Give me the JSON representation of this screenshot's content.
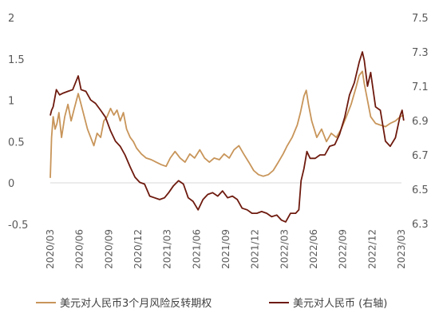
{
  "chart_data": {
    "type": "line",
    "title": "",
    "x_tick_labels": [
      "2020/03",
      "2020/06",
      "2020/09",
      "2020/12",
      "2021/03",
      "2021/06",
      "2021/09",
      "2021/12",
      "2022/03",
      "2022/06",
      "2022/09",
      "2022/12",
      "2023/03"
    ],
    "y_left": {
      "ticks": [
        "2",
        "1.5",
        "1",
        "0.5",
        "0",
        "-0.5"
      ],
      "range": [
        -0.5,
        2
      ]
    },
    "y_right": {
      "ticks": [
        "7.5",
        "7.3",
        "7.1",
        "6.9",
        "6.7",
        "6.5",
        "6.3"
      ],
      "range": [
        6.3,
        7.5
      ]
    },
    "grid": false,
    "legend_position": "bottom",
    "series": [
      {
        "name": "美元对人民币3个月风险反转期权",
        "axis": "left",
        "color": "#C8955A",
        "values": [
          [
            "2020-03-01",
            0.06
          ],
          [
            "2020-03-05",
            0.55
          ],
          [
            "2020-03-10",
            0.8
          ],
          [
            "2020-03-16",
            0.65
          ],
          [
            "2020-03-22",
            0.72
          ],
          [
            "2020-03-28",
            0.85
          ],
          [
            "2020-04-05",
            0.55
          ],
          [
            "2020-04-15",
            0.8
          ],
          [
            "2020-04-25",
            0.95
          ],
          [
            "2020-05-05",
            0.75
          ],
          [
            "2020-05-15",
            0.9
          ],
          [
            "2020-05-27",
            1.08
          ],
          [
            "2020-06-05",
            0.95
          ],
          [
            "2020-06-15",
            0.8
          ],
          [
            "2020-06-25",
            0.65
          ],
          [
            "2020-07-05",
            0.55
          ],
          [
            "2020-07-15",
            0.45
          ],
          [
            "2020-07-25",
            0.6
          ],
          [
            "2020-08-05",
            0.55
          ],
          [
            "2020-08-15",
            0.75
          ],
          [
            "2020-08-25",
            0.8
          ],
          [
            "2020-09-05",
            0.9
          ],
          [
            "2020-09-15",
            0.82
          ],
          [
            "2020-09-25",
            0.88
          ],
          [
            "2020-10-05",
            0.75
          ],
          [
            "2020-10-15",
            0.85
          ],
          [
            "2020-10-25",
            0.65
          ],
          [
            "2020-11-05",
            0.55
          ],
          [
            "2020-11-15",
            0.5
          ],
          [
            "2020-11-25",
            0.42
          ],
          [
            "2020-12-10",
            0.35
          ],
          [
            "2020-12-25",
            0.3
          ],
          [
            "2021-01-10",
            0.28
          ],
          [
            "2021-01-25",
            0.25
          ],
          [
            "2021-02-10",
            0.22
          ],
          [
            "2021-02-25",
            0.2
          ],
          [
            "2021-03-10",
            0.3
          ],
          [
            "2021-03-25",
            0.38
          ],
          [
            "2021-04-10",
            0.3
          ],
          [
            "2021-04-25",
            0.25
          ],
          [
            "2021-05-10",
            0.35
          ],
          [
            "2021-05-25",
            0.3
          ],
          [
            "2021-06-10",
            0.4
          ],
          [
            "2021-06-25",
            0.3
          ],
          [
            "2021-07-10",
            0.25
          ],
          [
            "2021-07-25",
            0.3
          ],
          [
            "2021-08-10",
            0.28
          ],
          [
            "2021-08-25",
            0.35
          ],
          [
            "2021-09-10",
            0.3
          ],
          [
            "2021-09-25",
            0.4
          ],
          [
            "2021-10-10",
            0.45
          ],
          [
            "2021-10-25",
            0.35
          ],
          [
            "2021-11-10",
            0.25
          ],
          [
            "2021-11-25",
            0.15
          ],
          [
            "2021-12-10",
            0.1
          ],
          [
            "2021-12-25",
            0.08
          ],
          [
            "2022-01-10",
            0.1
          ],
          [
            "2022-01-25",
            0.15
          ],
          [
            "2022-02-10",
            0.25
          ],
          [
            "2022-02-25",
            0.35
          ],
          [
            "2022-03-10",
            0.45
          ],
          [
            "2022-03-25",
            0.55
          ],
          [
            "2022-04-10",
            0.7
          ],
          [
            "2022-04-20",
            0.85
          ],
          [
            "2022-05-01",
            1.05
          ],
          [
            "2022-05-08",
            1.12
          ],
          [
            "2022-05-15",
            0.95
          ],
          [
            "2022-05-25",
            0.75
          ],
          [
            "2022-06-10",
            0.55
          ],
          [
            "2022-06-25",
            0.65
          ],
          [
            "2022-07-10",
            0.5
          ],
          [
            "2022-07-25",
            0.6
          ],
          [
            "2022-08-10",
            0.55
          ],
          [
            "2022-08-25",
            0.65
          ],
          [
            "2022-09-10",
            0.8
          ],
          [
            "2022-09-25",
            0.95
          ],
          [
            "2022-10-10",
            1.15
          ],
          [
            "2022-10-20",
            1.3
          ],
          [
            "2022-10-30",
            1.35
          ],
          [
            "2022-11-05",
            1.2
          ],
          [
            "2022-11-15",
            1.0
          ],
          [
            "2022-11-25",
            0.8
          ],
          [
            "2022-12-10",
            0.72
          ],
          [
            "2022-12-25",
            0.7
          ],
          [
            "2023-01-10",
            0.68
          ],
          [
            "2023-01-25",
            0.72
          ],
          [
            "2023-02-10",
            0.75
          ],
          [
            "2023-02-25",
            0.8
          ],
          [
            "2023-03-08",
            0.82
          ]
        ]
      },
      {
        "name": "美元对人民币 (右轴)",
        "axis": "right",
        "color": "#6E1A0E",
        "values": [
          [
            "2020-03-01",
            6.93
          ],
          [
            "2020-03-05",
            6.96
          ],
          [
            "2020-03-10",
            6.98
          ],
          [
            "2020-03-20",
            7.08
          ],
          [
            "2020-03-30",
            7.05
          ],
          [
            "2020-04-10",
            7.06
          ],
          [
            "2020-04-25",
            7.07
          ],
          [
            "2020-05-10",
            7.08
          ],
          [
            "2020-05-27",
            7.16
          ],
          [
            "2020-06-05",
            7.08
          ],
          [
            "2020-06-20",
            7.07
          ],
          [
            "2020-07-05",
            7.02
          ],
          [
            "2020-07-20",
            7.0
          ],
          [
            "2020-08-05",
            6.96
          ],
          [
            "2020-08-20",
            6.92
          ],
          [
            "2020-09-05",
            6.84
          ],
          [
            "2020-09-20",
            6.78
          ],
          [
            "2020-10-05",
            6.75
          ],
          [
            "2020-10-20",
            6.7
          ],
          [
            "2020-11-05",
            6.63
          ],
          [
            "2020-11-20",
            6.57
          ],
          [
            "2020-12-05",
            6.54
          ],
          [
            "2020-12-20",
            6.53
          ],
          [
            "2021-01-05",
            6.46
          ],
          [
            "2021-01-20",
            6.45
          ],
          [
            "2021-02-05",
            6.44
          ],
          [
            "2021-02-20",
            6.45
          ],
          [
            "2021-03-05",
            6.48
          ],
          [
            "2021-03-20",
            6.52
          ],
          [
            "2021-04-05",
            6.55
          ],
          [
            "2021-04-20",
            6.53
          ],
          [
            "2021-05-05",
            6.45
          ],
          [
            "2021-05-20",
            6.43
          ],
          [
            "2021-06-05",
            6.38
          ],
          [
            "2021-06-20",
            6.44
          ],
          [
            "2021-07-05",
            6.47
          ],
          [
            "2021-07-20",
            6.48
          ],
          [
            "2021-08-05",
            6.46
          ],
          [
            "2021-08-20",
            6.49
          ],
          [
            "2021-09-05",
            6.45
          ],
          [
            "2021-09-20",
            6.46
          ],
          [
            "2021-10-05",
            6.44
          ],
          [
            "2021-10-20",
            6.39
          ],
          [
            "2021-11-05",
            6.38
          ],
          [
            "2021-11-20",
            6.36
          ],
          [
            "2021-12-05",
            6.36
          ],
          [
            "2021-12-20",
            6.37
          ],
          [
            "2022-01-05",
            6.36
          ],
          [
            "2022-01-20",
            6.34
          ],
          [
            "2022-02-05",
            6.35
          ],
          [
            "2022-02-20",
            6.32
          ],
          [
            "2022-03-05",
            6.31
          ],
          [
            "2022-03-20",
            6.36
          ],
          [
            "2022-04-05",
            6.36
          ],
          [
            "2022-04-15",
            6.38
          ],
          [
            "2022-04-22",
            6.55
          ],
          [
            "2022-05-01",
            6.62
          ],
          [
            "2022-05-10",
            6.72
          ],
          [
            "2022-05-20",
            6.68
          ],
          [
            "2022-06-05",
            6.68
          ],
          [
            "2022-06-20",
            6.7
          ],
          [
            "2022-07-05",
            6.7
          ],
          [
            "2022-07-20",
            6.75
          ],
          [
            "2022-08-05",
            6.76
          ],
          [
            "2022-08-20",
            6.82
          ],
          [
            "2022-09-05",
            6.92
          ],
          [
            "2022-09-20",
            7.05
          ],
          [
            "2022-10-05",
            7.12
          ],
          [
            "2022-10-20",
            7.24
          ],
          [
            "2022-10-30",
            7.3
          ],
          [
            "2022-11-05",
            7.25
          ],
          [
            "2022-11-15",
            7.1
          ],
          [
            "2022-11-25",
            7.18
          ],
          [
            "2022-12-10",
            6.98
          ],
          [
            "2022-12-25",
            6.96
          ],
          [
            "2023-01-10",
            6.78
          ],
          [
            "2023-01-25",
            6.75
          ],
          [
            "2023-02-10",
            6.8
          ],
          [
            "2023-02-25",
            6.93
          ],
          [
            "2023-03-03",
            6.96
          ],
          [
            "2023-03-08",
            6.9
          ]
        ]
      }
    ]
  }
}
